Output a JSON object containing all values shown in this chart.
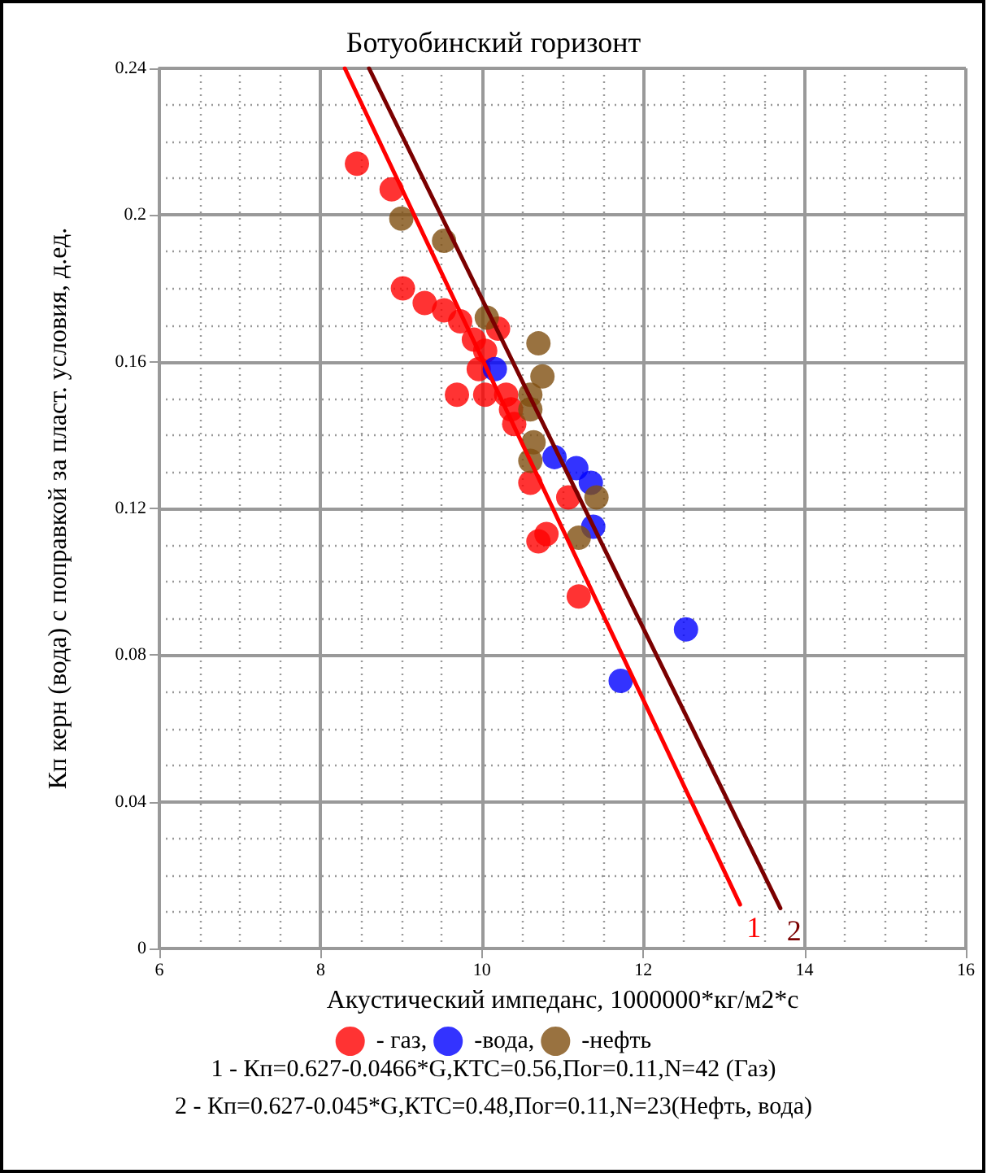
{
  "chart_data": {
    "type": "scatter",
    "title": "Ботуобинский горизонт",
    "xlabel": "Акустический импеданс, 1000000*кг/м2*с",
    "ylabel": "Кп керн (вода) с поправкой за пласт. условия, д.ед.",
    "xlim": [
      6,
      16
    ],
    "xticks": [
      6,
      8,
      10,
      12,
      14,
      16
    ],
    "ylim": [
      0,
      0.24
    ],
    "yticks": [
      0,
      0.04,
      0.08,
      0.12,
      0.16,
      0.2,
      0.24
    ],
    "grid": true,
    "legend": "bottom",
    "series": [
      {
        "name": "- газ,",
        "color": "#ff0000",
        "marker": "circle",
        "x": [
          8.45,
          8.88,
          9.02,
          9.29,
          9.53,
          9.73,
          10.2,
          9.9,
          10.04,
          9.96,
          9.69,
          10.04,
          10.3,
          10.36,
          10.4,
          10.6,
          11.07,
          10.8,
          10.7,
          11.2
        ],
        "values": [
          0.214,
          0.207,
          0.18,
          0.176,
          0.174,
          0.171,
          0.169,
          0.166,
          0.163,
          0.158,
          0.151,
          0.151,
          0.151,
          0.147,
          0.143,
          0.127,
          0.123,
          0.113,
          0.111,
          0.096
        ]
      },
      {
        "name": "-вода,",
        "color": "#0000ff",
        "marker": "circle",
        "x": [
          10.16,
          10.9,
          11.17,
          11.35,
          11.38,
          12.53,
          11.72
        ],
        "values": [
          0.158,
          0.134,
          0.131,
          0.127,
          0.115,
          0.087,
          0.073
        ]
      },
      {
        "name": "-нефть",
        "color": "#7f4f10",
        "marker": "circle",
        "x": [
          9.0,
          9.53,
          10.06,
          10.7,
          10.75,
          10.6,
          10.6,
          10.64,
          10.6,
          11.42,
          11.2
        ],
        "values": [
          0.199,
          0.193,
          0.172,
          0.165,
          0.156,
          0.151,
          0.147,
          0.138,
          0.133,
          0.123,
          0.112
        ]
      },
      {
        "name": "1",
        "type": "line",
        "marker": "none",
        "color": "#ff0000",
        "line_style": "solid",
        "x": [
          8.3,
          13.2
        ],
        "values": [
          0.24,
          0.012
        ]
      },
      {
        "name": "2",
        "type": "line",
        "marker": "none",
        "color": "#7b0000",
        "line_style": "solid",
        "x": [
          8.6,
          13.7
        ],
        "values": [
          0.24,
          0.011
        ]
      }
    ],
    "annotations": [
      "1 - Кп=0.627-0.0466*G,КТС=0.56,Пог=0.11,N=42 (Газ)",
      "2 - Кп=0.627-0.045*G,КТС=0.48,Пог=0.11,N=23(Нефть, вода)"
    ]
  }
}
